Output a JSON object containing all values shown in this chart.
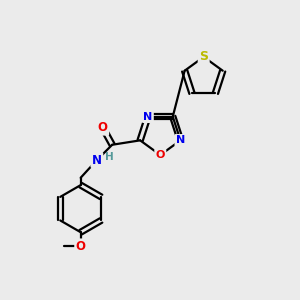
{
  "background_color": "#ebebeb",
  "bond_color": "#000000",
  "figsize": [
    3.0,
    3.0
  ],
  "dpi": 100,
  "atom_colors": {
    "N": "#0000ee",
    "O": "#ee0000",
    "S": "#bbbb00",
    "C": "#000000",
    "H": "#559999"
  }
}
